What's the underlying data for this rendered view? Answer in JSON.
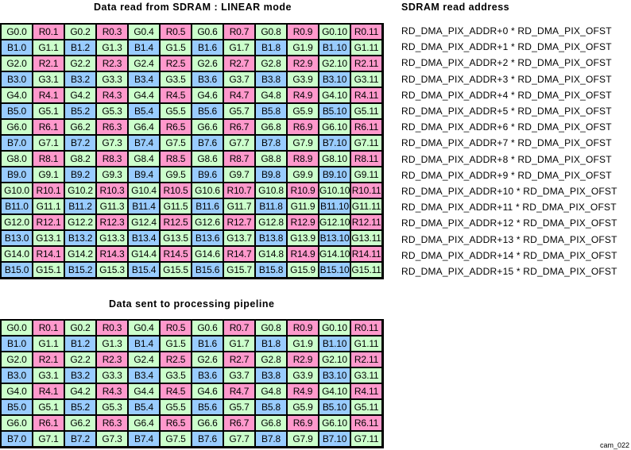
{
  "titles": {
    "top_grid": "Data read from SDRAM : LINEAR mode",
    "address_column": "SDRAM read address",
    "bottom_grid": "Data sent to processing pipeline"
  },
  "figure_label": "cam_022",
  "colors": {
    "G": "#ccffcc",
    "R": "#ff99cc",
    "B": "#99ccff"
  },
  "top_grid": {
    "rows": 16,
    "cols": 12,
    "cells": [
      [
        "G0.0",
        "R0.1",
        "G0.2",
        "R0.3",
        "G0.4",
        "R0.5",
        "G0.6",
        "R0.7",
        "G0.8",
        "R0.9",
        "G0.10",
        "R0.11"
      ],
      [
        "B1.0",
        "G1.1",
        "B1.2",
        "G1.3",
        "B1.4",
        "G1.5",
        "B1.6",
        "G1.7",
        "B1.8",
        "G1.9",
        "B1.10",
        "G1.11"
      ],
      [
        "G2.0",
        "R2.1",
        "G2.2",
        "R2.3",
        "G2.4",
        "R2.5",
        "G2.6",
        "R2.7",
        "G2.8",
        "R2.9",
        "G2.10",
        "R2.11"
      ],
      [
        "B3.0",
        "G3.1",
        "B3.2",
        "G3.3",
        "B3.4",
        "G3.5",
        "B3.6",
        "G3.7",
        "B3.8",
        "G3.9",
        "B3.10",
        "G3.11"
      ],
      [
        "G4.0",
        "R4.1",
        "G4.2",
        "R4.3",
        "G4.4",
        "R4.5",
        "G4.6",
        "R4.7",
        "G4.8",
        "R4.9",
        "G4.10",
        "R4.11"
      ],
      [
        "B5.0",
        "G5.1",
        "B5.2",
        "G5.3",
        "B5.4",
        "G5.5",
        "B5.6",
        "G5.7",
        "B5.8",
        "G5.9",
        "B5.10",
        "G5.11"
      ],
      [
        "G6.0",
        "R6.1",
        "G6.2",
        "R6.3",
        "G6.4",
        "R6.5",
        "G6.6",
        "R6.7",
        "G6.8",
        "R6.9",
        "G6.10",
        "R6.11"
      ],
      [
        "B7.0",
        "G7.1",
        "B7.2",
        "G7.3",
        "B7.4",
        "G7.5",
        "B7.6",
        "G7.7",
        "B7.8",
        "G7.9",
        "B7.10",
        "G7.11"
      ],
      [
        "G8.0",
        "R8.1",
        "G8.2",
        "R8.3",
        "G8.4",
        "R8.5",
        "G8.6",
        "R8.7",
        "G8.8",
        "R8.9",
        "G8.10",
        "R8.11"
      ],
      [
        "B9.0",
        "G9.1",
        "B9.2",
        "G9.3",
        "B9.4",
        "G9.5",
        "B9.6",
        "G9.7",
        "B9.8",
        "G9.9",
        "B9.10",
        "G9.11"
      ],
      [
        "G10.0",
        "R10.1",
        "G10.2",
        "R10.3",
        "G10.4",
        "R10.5",
        "G10.6",
        "R10.7",
        "G10.8",
        "R10.9",
        "G10.10",
        "R10.11"
      ],
      [
        "B11.0",
        "G11.1",
        "B11.2",
        "G11.3",
        "B11.4",
        "G11.5",
        "B11.6",
        "G11.7",
        "B11.8",
        "G11.9",
        "B11.10",
        "G11.11"
      ],
      [
        "G12.0",
        "R12.1",
        "G12.2",
        "R12.3",
        "G12.4",
        "R12.5",
        "G12.6",
        "R12.7",
        "G12.8",
        "R12.9",
        "G12.10",
        "R12.11"
      ],
      [
        "B13.0",
        "G13.1",
        "B13.2",
        "G13.3",
        "B13.4",
        "G13.5",
        "B13.6",
        "G13.7",
        "B13.8",
        "G13.9",
        "B13.10",
        "G13.11"
      ],
      [
        "G14.0",
        "R14.1",
        "G14.2",
        "R14.3",
        "G14.4",
        "R14.5",
        "G14.6",
        "R14.7",
        "G14.8",
        "R14.9",
        "G14.10",
        "R14.11"
      ],
      [
        "B15.0",
        "G15.1",
        "B15.2",
        "G15.3",
        "B15.4",
        "G15.5",
        "B15.6",
        "G15.7",
        "B15.8",
        "G15.9",
        "B15.10",
        "G15.11"
      ]
    ]
  },
  "addresses": [
    "RD_DMA_PIX_ADDR+0 * RD_DMA_PIX_OFST",
    "RD_DMA_PIX_ADDR+1 * RD_DMA_PIX_OFST",
    "RD_DMA_PIX_ADDR+2 * RD_DMA_PIX_OFST",
    "RD_DMA_PIX_ADDR+3 * RD_DMA_PIX_OFST",
    "RD_DMA_PIX_ADDR+4 * RD_DMA_PIX_OFST",
    "RD_DMA_PIX_ADDR+5 * RD_DMA_PIX_OFST",
    "RD_DMA_PIX_ADDR+6 * RD_DMA_PIX_OFST",
    "RD_DMA_PIX_ADDR+7 * RD_DMA_PIX_OFST",
    "RD_DMA_PIX_ADDR+8 * RD_DMA_PIX_OFST",
    "RD_DMA_PIX_ADDR+9 * RD_DMA_PIX_OFST",
    "RD_DMA_PIX_ADDR+10 * RD_DMA_PIX_OFST",
    "RD_DMA_PIX_ADDR+11 * RD_DMA_PIX_OFST",
    "RD_DMA_PIX_ADDR+12 * RD_DMA_PIX_OFST",
    "RD_DMA_PIX_ADDR+13 * RD_DMA_PIX_OFST",
    "RD_DMA_PIX_ADDR+14 * RD_DMA_PIX_OFST",
    "RD_DMA_PIX_ADDR+15 * RD_DMA_PIX_OFST"
  ],
  "bottom_grid": {
    "rows": 8,
    "cols": 12,
    "cells": [
      [
        "G0.0",
        "R0.1",
        "G0.2",
        "R0.3",
        "G0.4",
        "R0.5",
        "G0.6",
        "R0.7",
        "G0.8",
        "R0.9",
        "G0.10",
        "R0.11"
      ],
      [
        "B1.0",
        "G1.1",
        "B1.2",
        "G1.3",
        "B1.4",
        "G1.5",
        "B1.6",
        "G1.7",
        "B1.8",
        "G1.9",
        "B1.10",
        "G1.11"
      ],
      [
        "G2.0",
        "R2.1",
        "G2.2",
        "R2.3",
        "G2.4",
        "R2.5",
        "G2.6",
        "R2.7",
        "G2.8",
        "R2.9",
        "G2.10",
        "R2.11"
      ],
      [
        "B3.0",
        "G3.1",
        "B3.2",
        "G3.3",
        "B3.4",
        "G3.5",
        "B3.6",
        "G3.7",
        "B3.8",
        "G3.9",
        "B3.10",
        "G3.11"
      ],
      [
        "G4.0",
        "R4.1",
        "G4.2",
        "R4.3",
        "G4.4",
        "R4.5",
        "G4.6",
        "R4.7",
        "G4.8",
        "R4.9",
        "G4.10",
        "R4.11"
      ],
      [
        "B5.0",
        "G5.1",
        "B5.2",
        "G5.3",
        "B5.4",
        "G5.5",
        "B5.6",
        "G5.7",
        "B5.8",
        "G5.9",
        "B5.10",
        "G5.11"
      ],
      [
        "G6.0",
        "R6.1",
        "G6.2",
        "R6.3",
        "G6.4",
        "R6.5",
        "G6.6",
        "R6.7",
        "G6.8",
        "R6.9",
        "G6.10",
        "R6.11"
      ],
      [
        "B7.0",
        "G7.1",
        "B7.2",
        "G7.3",
        "B7.4",
        "G7.5",
        "B7.6",
        "G7.7",
        "B7.8",
        "G7.9",
        "B7.10",
        "G7.11"
      ]
    ]
  }
}
